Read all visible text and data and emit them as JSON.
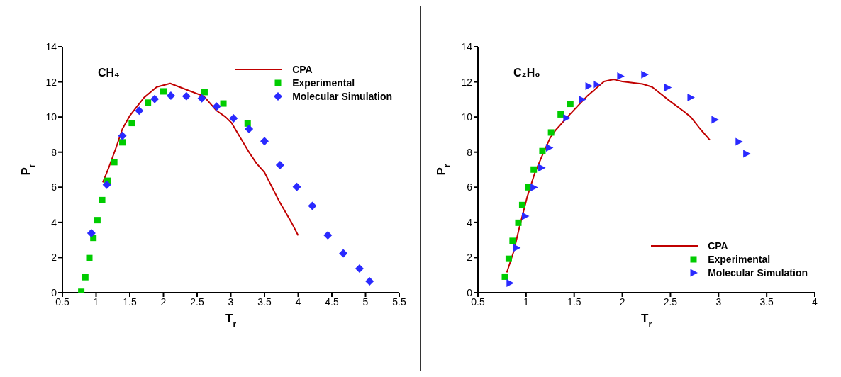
{
  "chart_data": [
    {
      "type": "scatter",
      "title": "CH₄",
      "xlabel": "T$_{r}$",
      "ylabel": "P$_{r}$",
      "xlim": [
        0.5,
        5.5
      ],
      "xticks": [
        0.5,
        1,
        1.5,
        2,
        2.5,
        3,
        3.5,
        4,
        4.5,
        5,
        5.5
      ],
      "ylim": [
        0,
        14
      ],
      "yticks": [
        0,
        2,
        4,
        6,
        8,
        10,
        12,
        14
      ],
      "grid": false,
      "legend": "top right",
      "series": [
        {
          "name": "CPA",
          "type": "line",
          "color": "#c00000",
          "marker": "none",
          "line_style": "solid",
          "x": [
            1.1,
            1.19,
            1.3,
            1.39,
            1.5,
            1.71,
            1.9,
            2.1,
            2.34,
            2.6,
            2.79,
            2.92,
            3.01,
            3.27,
            3.38,
            3.5,
            3.72,
            3.91,
            4.0
          ],
          "values": [
            6.28,
            7.14,
            8.29,
            9.32,
            10.07,
            11.1,
            11.71,
            11.91,
            11.56,
            11.18,
            10.36,
            10.01,
            9.67,
            8.0,
            7.37,
            6.85,
            5.19,
            3.93,
            3.26
          ]
        },
        {
          "name": "Experimental",
          "color": "#00cc00",
          "marker": "square",
          "x": [
            0.78,
            0.84,
            0.9,
            0.96,
            1.02,
            1.09,
            1.17,
            1.27,
            1.39,
            1.53,
            1.77,
            2.0,
            2.61,
            2.89,
            3.25
          ],
          "values": [
            0.05,
            0.88,
            1.97,
            3.12,
            4.13,
            5.27,
            6.37,
            7.43,
            8.56,
            9.66,
            10.82,
            11.46,
            11.42,
            10.77,
            9.63
          ]
        },
        {
          "name": "Molecular Simulation",
          "color": "#2a2aff",
          "marker": "diamond",
          "x": [
            0.93,
            1.16,
            1.39,
            1.64,
            1.87,
            2.11,
            2.34,
            2.57,
            2.79,
            3.04,
            3.27,
            3.5,
            3.73,
            3.98,
            4.21,
            4.44,
            4.67,
            4.91,
            5.06
          ],
          "values": [
            3.39,
            6.14,
            8.93,
            10.36,
            11.02,
            11.22,
            11.19,
            11.06,
            10.6,
            9.93,
            9.32,
            8.62,
            7.26,
            6.02,
            4.94,
            3.27,
            2.24,
            1.37,
            0.65
          ]
        }
      ]
    },
    {
      "type": "scatter",
      "title": "C₂H₆",
      "xlabel": "T$_{r}$",
      "ylabel": "P$_{r}$",
      "xlim": [
        0.5,
        4
      ],
      "xticks": [
        0.5,
        1,
        1.5,
        2,
        2.5,
        3,
        3.5,
        4
      ],
      "ylim": [
        0,
        14
      ],
      "yticks": [
        0,
        2,
        4,
        6,
        8,
        10,
        12,
        14
      ],
      "grid": false,
      "legend": "bottom right",
      "series": [
        {
          "name": "CPA",
          "type": "line",
          "color": "#c00000",
          "marker": "none",
          "line_style": "solid",
          "x": [
            0.8,
            0.87,
            0.93,
            1.01,
            1.09,
            1.17,
            1.25,
            1.31,
            1.46,
            1.64,
            1.81,
            1.91,
            2.0,
            2.21,
            2.31,
            2.49,
            2.63,
            2.71,
            2.81,
            2.91
          ],
          "values": [
            1.15,
            2.32,
            3.7,
            5.42,
            6.8,
            7.83,
            8.81,
            9.27,
            10.18,
            11.22,
            12.02,
            12.14,
            12.02,
            11.88,
            11.71,
            10.93,
            10.36,
            10.01,
            9.32,
            8.69
          ]
        },
        {
          "name": "Experimental",
          "color": "#00cc00",
          "marker": "square",
          "x": [
            0.78,
            0.82,
            0.86,
            0.92,
            0.96,
            1.02,
            1.08,
            1.17,
            1.26,
            1.36,
            1.46
          ],
          "values": [
            0.91,
            1.93,
            2.95,
            3.98,
            4.99,
            6.0,
            7.01,
            8.06,
            9.12,
            10.15,
            10.75
          ]
        },
        {
          "name": "Molecular Simulation",
          "color": "#2a2aff",
          "marker": "triangle",
          "x": [
            0.83,
            0.9,
            0.99,
            1.08,
            1.16,
            1.24,
            1.42,
            1.58,
            1.65,
            1.73,
            1.98,
            2.23,
            2.47,
            2.71,
            2.96,
            3.21,
            3.29
          ],
          "values": [
            0.54,
            2.55,
            4.36,
            5.99,
            7.11,
            8.25,
            9.95,
            10.99,
            11.76,
            11.85,
            12.33,
            12.42,
            11.68,
            11.12,
            9.84,
            8.59,
            7.91
          ]
        }
      ]
    }
  ]
}
